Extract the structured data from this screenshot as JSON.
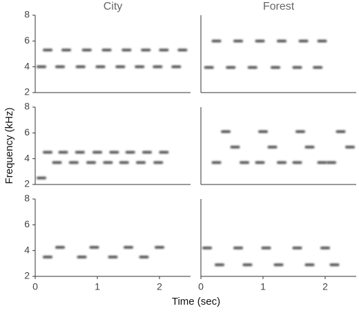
{
  "xlabel": "Time (sec)",
  "ylabel": "Frequency (kHz)",
  "chart_data": [
    {
      "type": "spectrogram",
      "title": "City",
      "xlim": [
        0,
        2.5
      ],
      "ylim": [
        2,
        8
      ],
      "yticks": [
        2,
        4,
        6,
        8
      ],
      "x": [
        0.1,
        0.4,
        0.73,
        1.05,
        1.37,
        1.68,
        1.97,
        2.27,
        0.2,
        0.5,
        0.83,
        1.15,
        1.47,
        1.78,
        2.07,
        2.37
      ],
      "values": [
        4.0,
        4.0,
        4.0,
        4.0,
        4.0,
        4.0,
        4.0,
        4.0,
        5.3,
        5.3,
        5.3,
        5.3,
        5.3,
        5.3,
        5.3,
        5.3
      ]
    },
    {
      "type": "spectrogram",
      "title": "Forest",
      "xlim": [
        0,
        2.5
      ],
      "ylim": [
        2,
        8
      ],
      "x": [
        0.13,
        0.48,
        0.83,
        1.2,
        1.55,
        1.88,
        0.25,
        0.6,
        0.95,
        1.3,
        1.65,
        1.95
      ],
      "values": [
        3.95,
        3.95,
        3.95,
        3.95,
        3.95,
        3.95,
        6.0,
        6.0,
        6.0,
        6.0,
        6.0,
        6.0
      ]
    },
    {
      "type": "spectrogram",
      "xlim": [
        0,
        2.5
      ],
      "ylim": [
        2,
        8
      ],
      "yticks": [
        2,
        4,
        6,
        8
      ],
      "x": [
        0.2,
        0.45,
        0.72,
        1.0,
        1.27,
        1.53,
        1.8,
        2.07,
        0.35,
        0.62,
        0.9,
        1.17,
        1.43,
        1.7,
        1.98,
        0.1
      ],
      "values": [
        4.5,
        4.5,
        4.5,
        4.5,
        4.5,
        4.5,
        4.5,
        4.5,
        3.7,
        3.7,
        3.7,
        3.7,
        3.7,
        3.7,
        3.7,
        2.5
      ]
    },
    {
      "type": "spectrogram",
      "xlim": [
        0,
        2.5
      ],
      "ylim": [
        2,
        8
      ],
      "x": [
        0.4,
        1.0,
        1.6,
        2.25,
        0.55,
        1.15,
        1.75,
        2.4,
        0.25,
        0.7,
        0.95,
        1.3,
        1.55,
        1.95,
        2.1
      ],
      "values": [
        6.1,
        6.1,
        6.1,
        6.1,
        4.9,
        4.9,
        4.9,
        4.9,
        3.7,
        3.7,
        3.7,
        3.7,
        3.7,
        3.7,
        3.7
      ]
    },
    {
      "type": "spectrogram",
      "xlim": [
        0,
        2.5
      ],
      "ylim": [
        2,
        8
      ],
      "yticks": [
        2,
        4,
        6,
        8
      ],
      "xticks": [
        0,
        1,
        2
      ],
      "x": [
        0.2,
        0.75,
        1.25,
        1.75,
        0.4,
        0.95,
        1.5,
        2.0
      ],
      "values": [
        3.5,
        3.5,
        3.5,
        3.5,
        4.25,
        4.25,
        4.25,
        4.25
      ]
    },
    {
      "type": "spectrogram",
      "xlim": [
        0,
        2.5
      ],
      "ylim": [
        2,
        8
      ],
      "xticks": [
        0,
        1,
        2
      ],
      "x": [
        0.1,
        0.6,
        1.05,
        1.55,
        2.0,
        0.3,
        0.75,
        1.25,
        1.75,
        2.15
      ],
      "values": [
        4.2,
        4.2,
        4.2,
        4.2,
        4.2,
        2.9,
        2.9,
        2.9,
        2.9,
        2.9
      ]
    }
  ]
}
